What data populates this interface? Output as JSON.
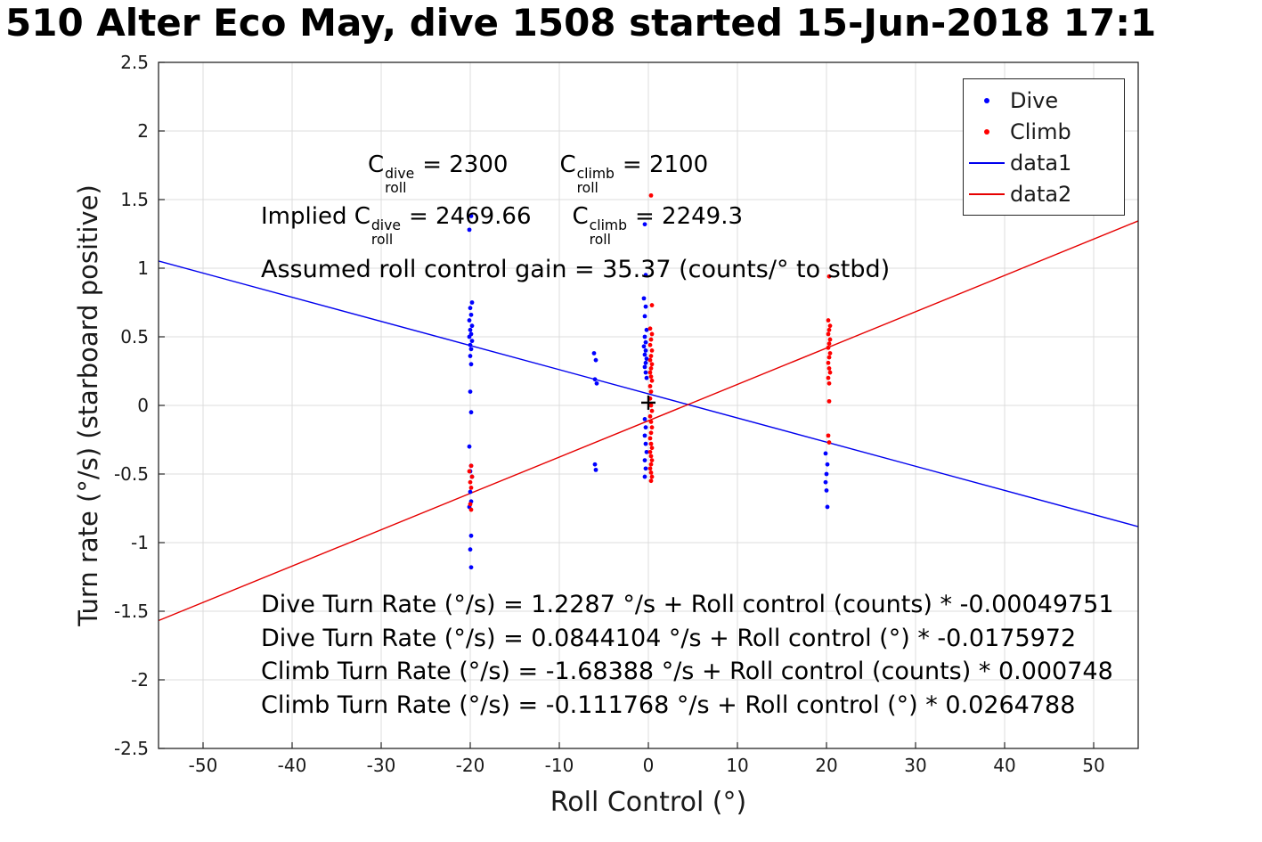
{
  "chart_data": {
    "type": "scatter",
    "title": "510 Alter Eco May, dive 1508 started 15-Jun-2018 17:1",
    "xlabel": "Roll Control (°)",
    "ylabel": "Turn rate (°/s) (starboard positive)",
    "xlim": [
      -55,
      55
    ],
    "ylim": [
      -2.5,
      2.5
    ],
    "xticks": [
      -50,
      -40,
      -30,
      -20,
      -10,
      0,
      10,
      20,
      30,
      40,
      50
    ],
    "yticks": [
      -2.5,
      -2,
      -1.5,
      -1,
      -0.5,
      0,
      0.5,
      1,
      1.5,
      2,
      2.5
    ],
    "grid": true,
    "grid_color": "#dcdcdc",
    "axis_color": "#262626",
    "legend": {
      "position": "top-right",
      "entries": [
        {
          "label": "Dive",
          "marker": "dot",
          "color": "#0000ff"
        },
        {
          "label": "Climb",
          "marker": "dot",
          "color": "#ff0000"
        },
        {
          "label": "data1",
          "marker": "line",
          "color": "#0000ee"
        },
        {
          "label": "data2",
          "marker": "line",
          "color": "#e60000"
        }
      ]
    },
    "series": [
      {
        "name": "data1",
        "type": "line",
        "color": "#0000ee",
        "fit": {
          "intercept": 0.0844104,
          "slope": -0.0175972
        }
      },
      {
        "name": "data2",
        "type": "line",
        "color": "#e60000",
        "fit": {
          "intercept": -0.111768,
          "slope": 0.0264788
        }
      },
      {
        "name": "Dive",
        "type": "scatter",
        "color": "#0000ff",
        "points": [
          [
            -19.9,
            1.38
          ],
          [
            -20.1,
            1.28
          ],
          [
            -19.8,
            0.75
          ],
          [
            -20.0,
            0.71
          ],
          [
            -19.9,
            0.66
          ],
          [
            -20.1,
            0.62
          ],
          [
            -19.8,
            0.58
          ],
          [
            -20.0,
            0.55
          ],
          [
            -19.9,
            0.52
          ],
          [
            -20.1,
            0.5
          ],
          [
            -19.8,
            0.47
          ],
          [
            -20.0,
            0.44
          ],
          [
            -19.9,
            0.41
          ],
          [
            -20.0,
            0.36
          ],
          [
            -19.9,
            0.3
          ],
          [
            -20.0,
            0.1
          ],
          [
            -19.9,
            -0.05
          ],
          [
            -20.1,
            -0.3
          ],
          [
            -19.9,
            -0.44
          ],
          [
            -20.0,
            -0.48
          ],
          [
            -19.8,
            -0.52
          ],
          [
            -20.0,
            -0.63
          ],
          [
            -19.9,
            -0.7
          ],
          [
            -20.1,
            -0.74
          ],
          [
            -19.9,
            -0.95
          ],
          [
            -20.0,
            -1.05
          ],
          [
            -19.9,
            -1.18
          ],
          [
            -6.1,
            0.38
          ],
          [
            -5.9,
            0.33
          ],
          [
            -6.0,
            0.19
          ],
          [
            -5.8,
            0.16
          ],
          [
            -6.0,
            -0.43
          ],
          [
            -5.9,
            -0.47
          ],
          [
            -0.4,
            1.32
          ],
          [
            -0.3,
            0.95
          ],
          [
            -0.5,
            0.78
          ],
          [
            -0.3,
            0.72
          ],
          [
            -0.4,
            0.65
          ],
          [
            -0.2,
            0.55
          ],
          [
            -0.4,
            0.5
          ],
          [
            -0.3,
            0.46
          ],
          [
            -0.5,
            0.43
          ],
          [
            -0.3,
            0.4
          ],
          [
            -0.4,
            0.37
          ],
          [
            -0.2,
            0.34
          ],
          [
            -0.3,
            0.31
          ],
          [
            -0.4,
            0.28
          ],
          [
            -0.3,
            0.24
          ],
          [
            -0.2,
            0.2
          ],
          [
            -0.4,
            -0.1
          ],
          [
            -0.3,
            -0.16
          ],
          [
            -0.4,
            -0.22
          ],
          [
            -0.3,
            -0.28
          ],
          [
            -0.2,
            -0.34
          ],
          [
            -0.4,
            -0.4
          ],
          [
            -0.3,
            -0.46
          ],
          [
            -0.4,
            -0.52
          ],
          [
            19.9,
            -0.35
          ],
          [
            20.1,
            -0.43
          ],
          [
            20.0,
            -0.5
          ],
          [
            19.9,
            -0.56
          ],
          [
            20.0,
            -0.62
          ],
          [
            20.1,
            -0.74
          ]
        ]
      },
      {
        "name": "Climb",
        "type": "scatter",
        "color": "#ff0000",
        "points": [
          [
            -19.9,
            -0.44
          ],
          [
            -20.1,
            -0.48
          ],
          [
            -19.8,
            -0.52
          ],
          [
            -20.0,
            -0.56
          ],
          [
            -19.9,
            -0.6
          ],
          [
            -20.0,
            -0.72
          ],
          [
            -19.9,
            -0.76
          ],
          [
            0.3,
            1.53
          ],
          [
            0.4,
            0.73
          ],
          [
            0.2,
            0.56
          ],
          [
            0.4,
            0.52
          ],
          [
            0.3,
            0.48
          ],
          [
            0.2,
            0.44
          ],
          [
            0.4,
            0.4
          ],
          [
            0.3,
            0.36
          ],
          [
            0.2,
            0.33
          ],
          [
            0.4,
            0.3
          ],
          [
            0.3,
            0.27
          ],
          [
            0.2,
            0.24
          ],
          [
            0.3,
            0.21
          ],
          [
            0.4,
            0.18
          ],
          [
            0.2,
            0.14
          ],
          [
            0.3,
            0.1
          ],
          [
            0.2,
            0.05
          ],
          [
            0.3,
            0.0
          ],
          [
            0.4,
            -0.04
          ],
          [
            0.2,
            -0.08
          ],
          [
            0.3,
            -0.12
          ],
          [
            0.4,
            -0.16
          ],
          [
            0.3,
            -0.2
          ],
          [
            0.2,
            -0.24
          ],
          [
            0.3,
            -0.28
          ],
          [
            0.4,
            -0.31
          ],
          [
            0.2,
            -0.34
          ],
          [
            0.3,
            -0.37
          ],
          [
            0.4,
            -0.4
          ],
          [
            0.3,
            -0.43
          ],
          [
            0.2,
            -0.46
          ],
          [
            0.3,
            -0.49
          ],
          [
            0.4,
            -0.52
          ],
          [
            0.3,
            -0.55
          ],
          [
            20.3,
            0.94
          ],
          [
            20.2,
            0.62
          ],
          [
            20.4,
            0.58
          ],
          [
            20.3,
            0.55
          ],
          [
            20.2,
            0.52
          ],
          [
            20.4,
            0.48
          ],
          [
            20.3,
            0.45
          ],
          [
            20.2,
            0.42
          ],
          [
            20.4,
            0.38
          ],
          [
            20.3,
            0.35
          ],
          [
            20.2,
            0.31
          ],
          [
            20.3,
            0.27
          ],
          [
            20.4,
            0.24
          ],
          [
            20.2,
            0.2
          ],
          [
            20.3,
            0.16
          ],
          [
            20.3,
            0.03
          ],
          [
            20.2,
            -0.22
          ],
          [
            20.3,
            -0.27
          ]
        ]
      },
      {
        "name": "origin-marker",
        "type": "marker-plus",
        "color": "#000000",
        "points": [
          [
            0,
            0.02
          ]
        ]
      }
    ],
    "annotations": {
      "coeff_line1": {
        "term1": {
          "base": "C",
          "sup": "dive",
          "sub": "roll",
          "eq": "= 2300"
        },
        "term2": {
          "base": "C",
          "sup": "climb",
          "sub": "roll",
          "eq": "= 2100"
        }
      },
      "coeff_line2": {
        "prefix": "Implied ",
        "term1": {
          "base": "C",
          "sup": "dive",
          "sub": "roll",
          "eq": "= 2469.66"
        },
        "term2": {
          "base": "C",
          "sup": "climb",
          "sub": "roll",
          "eq": "= 2249.3"
        }
      },
      "gain_line": "Assumed roll control gain = 35.37 (counts/° to stbd)",
      "fit_equations": [
        "Dive Turn Rate (°/s) = 1.2287 °/s + Roll control (counts) * -0.00049751",
        "Dive Turn Rate (°/s) = 0.0844104 °/s + Roll control (°) * -0.0175972",
        "Climb Turn Rate (°/s) = -1.68388 °/s + Roll control (counts) * 0.000748",
        "Climb Turn Rate (°/s) = -0.111768 °/s + Roll control (°) * 0.0264788"
      ]
    }
  }
}
